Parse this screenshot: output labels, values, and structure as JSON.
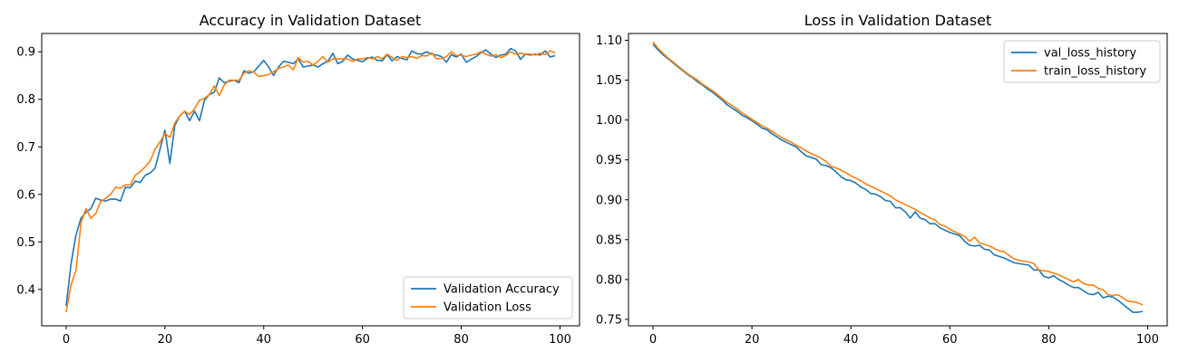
{
  "chart_data": [
    {
      "type": "line",
      "title": "Accuracy in Validation Dataset",
      "xlabel": "",
      "ylabel": "",
      "xlim": [
        -4.95,
        103.95
      ],
      "ylim": [
        0.3235,
        0.9385
      ],
      "xticks": [
        0,
        20,
        40,
        60,
        80,
        100
      ],
      "xtick_labels": [
        "0",
        "20",
        "40",
        "60",
        "80",
        "100"
      ],
      "yticks": [
        0.4,
        0.5,
        0.6,
        0.7,
        0.8,
        0.9
      ],
      "ytick_labels": [
        "0.4",
        "0.5",
        "0.6",
        "0.7",
        "0.8",
        "0.9"
      ],
      "grid": false,
      "legend_position": "bottom-right",
      "x": [
        0,
        1,
        2,
        3,
        4,
        5,
        6,
        7,
        8,
        9,
        10,
        11,
        12,
        13,
        14,
        15,
        16,
        17,
        18,
        19,
        20,
        21,
        22,
        23,
        24,
        25,
        26,
        27,
        28,
        29,
        30,
        31,
        32,
        33,
        34,
        35,
        36,
        37,
        38,
        39,
        40,
        41,
        42,
        43,
        44,
        45,
        46,
        47,
        48,
        49,
        50,
        51,
        52,
        53,
        54,
        55,
        56,
        57,
        58,
        59,
        60,
        61,
        62,
        63,
        64,
        65,
        66,
        67,
        68,
        69,
        70,
        71,
        72,
        73,
        74,
        75,
        76,
        77,
        78,
        79,
        80,
        81,
        82,
        83,
        84,
        85,
        86,
        87,
        88,
        89,
        90,
        91,
        92,
        93,
        94,
        95,
        96,
        97,
        98,
        99
      ],
      "series": [
        {
          "name": "Validation Accuracy",
          "color": "#1f77b4",
          "values": [
            0.365,
            0.455,
            0.515,
            0.55,
            0.562,
            0.57,
            0.592,
            0.588,
            0.586,
            0.59,
            0.59,
            0.586,
            0.615,
            0.614,
            0.628,
            0.625,
            0.64,
            0.645,
            0.655,
            0.695,
            0.735,
            0.665,
            0.745,
            0.765,
            0.775,
            0.755,
            0.775,
            0.755,
            0.798,
            0.81,
            0.815,
            0.845,
            0.835,
            0.838,
            0.84,
            0.835,
            0.86,
            0.855,
            0.858,
            0.87,
            0.882,
            0.868,
            0.85,
            0.868,
            0.88,
            0.878,
            0.875,
            0.885,
            0.868,
            0.87,
            0.872,
            0.868,
            0.875,
            0.88,
            0.897,
            0.875,
            0.88,
            0.893,
            0.885,
            0.882,
            0.879,
            0.886,
            0.889,
            0.882,
            0.881,
            0.894,
            0.881,
            0.89,
            0.886,
            0.883,
            0.902,
            0.896,
            0.895,
            0.9,
            0.895,
            0.893,
            0.89,
            0.878,
            0.894,
            0.889,
            0.895,
            0.878,
            0.884,
            0.89,
            0.898,
            0.904,
            0.895,
            0.888,
            0.893,
            0.895,
            0.907,
            0.902,
            0.884,
            0.895,
            0.893,
            0.895,
            0.893,
            0.902,
            0.889,
            0.892
          ]
        },
        {
          "name": "Validation Loss",
          "color": "#ff7f0e",
          "values": [
            0.352,
            0.41,
            0.44,
            0.54,
            0.57,
            0.55,
            0.56,
            0.585,
            0.592,
            0.6,
            0.615,
            0.613,
            0.62,
            0.62,
            0.64,
            0.648,
            0.658,
            0.67,
            0.695,
            0.71,
            0.728,
            0.72,
            0.75,
            0.765,
            0.775,
            0.768,
            0.78,
            0.798,
            0.802,
            0.81,
            0.828,
            0.808,
            0.83,
            0.84,
            0.84,
            0.84,
            0.855,
            0.86,
            0.857,
            0.848,
            0.85,
            0.852,
            0.858,
            0.865,
            0.868,
            0.872,
            0.862,
            0.888,
            0.878,
            0.88,
            0.872,
            0.88,
            0.89,
            0.878,
            0.885,
            0.885,
            0.885,
            0.885,
            0.88,
            0.885,
            0.885,
            0.888,
            0.885,
            0.89,
            0.885,
            0.895,
            0.888,
            0.882,
            0.89,
            0.888,
            0.89,
            0.886,
            0.892,
            0.891,
            0.898,
            0.885,
            0.886,
            0.89,
            0.9,
            0.892,
            0.893,
            0.89,
            0.893,
            0.895,
            0.9,
            0.895,
            0.891,
            0.894,
            0.888,
            0.892,
            0.9,
            0.895,
            0.897,
            0.895,
            0.895,
            0.893,
            0.897,
            0.894,
            0.902,
            0.898
          ]
        }
      ]
    },
    {
      "type": "line",
      "title": "Loss in Validation Dataset",
      "xlabel": "",
      "ylabel": "",
      "xlim": [
        -4.95,
        103.95
      ],
      "ylim": [
        0.742,
        1.1085
      ],
      "xticks": [
        0,
        20,
        40,
        60,
        80,
        100
      ],
      "xtick_labels": [
        "0",
        "20",
        "40",
        "60",
        "80",
        "100"
      ],
      "yticks": [
        0.75,
        0.8,
        0.85,
        0.9,
        0.95,
        1.0,
        1.05,
        1.1
      ],
      "ytick_labels": [
        "0.75",
        "0.80",
        "0.85",
        "0.90",
        "0.95",
        "1.00",
        "1.05",
        "1.10"
      ],
      "grid": false,
      "legend_position": "top-right",
      "x": [
        0,
        1,
        2,
        3,
        4,
        5,
        6,
        7,
        8,
        9,
        10,
        11,
        12,
        13,
        14,
        15,
        16,
        17,
        18,
        19,
        20,
        21,
        22,
        23,
        24,
        25,
        26,
        27,
        28,
        29,
        30,
        31,
        32,
        33,
        34,
        35,
        36,
        37,
        38,
        39,
        40,
        41,
        42,
        43,
        44,
        45,
        46,
        47,
        48,
        49,
        50,
        51,
        52,
        53,
        54,
        55,
        56,
        57,
        58,
        59,
        60,
        61,
        62,
        63,
        64,
        65,
        66,
        67,
        68,
        69,
        70,
        71,
        72,
        73,
        74,
        75,
        76,
        77,
        78,
        79,
        80,
        81,
        82,
        83,
        84,
        85,
        86,
        87,
        88,
        89,
        90,
        91,
        92,
        93,
        94,
        95,
        96,
        97,
        98,
        99
      ],
      "series": [
        {
          "name": "val_loss_history",
          "color": "#1f77b4",
          "values": [
            1.095,
            1.088,
            1.082,
            1.077,
            1.072,
            1.067,
            1.062,
            1.057,
            1.053,
            1.048,
            1.044,
            1.039,
            1.035,
            1.03,
            1.025,
            1.019,
            1.015,
            1.011,
            1.006,
            1.003,
            0.999,
            0.995,
            0.99,
            0.988,
            0.983,
            0.979,
            0.975,
            0.972,
            0.969,
            0.966,
            0.96,
            0.955,
            0.953,
            0.951,
            0.944,
            0.943,
            0.94,
            0.935,
            0.929,
            0.925,
            0.924,
            0.921,
            0.916,
            0.913,
            0.908,
            0.907,
            0.904,
            0.899,
            0.898,
            0.89,
            0.89,
            0.885,
            0.877,
            0.885,
            0.877,
            0.875,
            0.87,
            0.87,
            0.865,
            0.862,
            0.859,
            0.857,
            0.855,
            0.848,
            0.843,
            0.842,
            0.843,
            0.838,
            0.837,
            0.831,
            0.829,
            0.827,
            0.824,
            0.821,
            0.82,
            0.819,
            0.818,
            0.812,
            0.812,
            0.804,
            0.802,
            0.805,
            0.8,
            0.797,
            0.793,
            0.79,
            0.79,
            0.786,
            0.782,
            0.781,
            0.784,
            0.777,
            0.779,
            0.778,
            0.774,
            0.769,
            0.764,
            0.759,
            0.759,
            0.76
          ]
        },
        {
          "name": "train_loss_history",
          "color": "#ff7f0e",
          "values": [
            1.098,
            1.09,
            1.084,
            1.078,
            1.073,
            1.068,
            1.063,
            1.058,
            1.054,
            1.05,
            1.045,
            1.041,
            1.037,
            1.032,
            1.027,
            1.022,
            1.018,
            1.014,
            1.009,
            1.005,
            1.001,
            0.997,
            0.993,
            0.99,
            0.986,
            0.982,
            0.978,
            0.975,
            0.972,
            0.968,
            0.965,
            0.961,
            0.958,
            0.955,
            0.952,
            0.948,
            0.942,
            0.94,
            0.937,
            0.934,
            0.93,
            0.927,
            0.924,
            0.92,
            0.917,
            0.914,
            0.911,
            0.908,
            0.905,
            0.9,
            0.897,
            0.894,
            0.891,
            0.888,
            0.884,
            0.881,
            0.877,
            0.875,
            0.869,
            0.867,
            0.863,
            0.86,
            0.857,
            0.854,
            0.848,
            0.853,
            0.846,
            0.844,
            0.842,
            0.839,
            0.836,
            0.835,
            0.83,
            0.826,
            0.824,
            0.823,
            0.822,
            0.82,
            0.812,
            0.811,
            0.81,
            0.808,
            0.806,
            0.803,
            0.8,
            0.797,
            0.8,
            0.795,
            0.793,
            0.793,
            0.789,
            0.787,
            0.781,
            0.78,
            0.781,
            0.777,
            0.773,
            0.772,
            0.771,
            0.768
          ]
        }
      ]
    }
  ]
}
